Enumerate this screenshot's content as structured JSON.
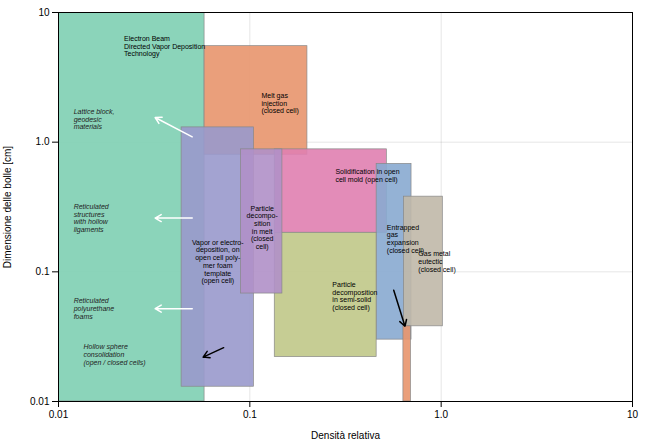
{
  "chart_data": {
    "type": "rect",
    "xlabel": "Densità relativa",
    "ylabel": "Dimensione delle bolle [cm]",
    "log": true,
    "xlim": [
      0.01,
      10
    ],
    "ylim": [
      0.01,
      10.0
    ],
    "xticks": [
      0.01,
      0.1,
      {
        "value": 1.0,
        "label": "1.0"
      },
      10
    ],
    "yticks": [
      0.01,
      0.1,
      {
        "value": 1.0,
        "label": "1.0"
      },
      10
    ],
    "grid": true,
    "rectangles": [
      {
        "label": "Electron Beam\nDirected Vapor Deposition\nTechnology",
        "x0": 0.01,
        "x1": 0.058,
        "y0": 0.01,
        "y1": 10.0,
        "color": "#7ecfb2",
        "edge_color": "#888888",
        "label_x": 0.022,
        "label_y": 5.5
      },
      {
        "label": "Melt gas\ninjection\n(closed cell)",
        "x0": 0.058,
        "x1": 0.2,
        "y0": 0.8,
        "y1": 5.5,
        "color": "#e8956d",
        "edge_color": "#888888",
        "label_x": 0.115,
        "label_y": 2.0
      },
      {
        "label": "Solidification in open\ncell mold (open cell)",
        "x0": 0.135,
        "x1": 0.52,
        "y0": 0.2,
        "y1": 0.88,
        "color": "#e080b0",
        "edge_color": "#888888",
        "label_x": 0.28,
        "label_y": 0.55
      },
      {
        "label": "Entrapped\ngas\nexpansion\n(closed cell)",
        "x0": 0.46,
        "x1": 0.7,
        "y0": 0.03,
        "y1": 0.68,
        "color": "#88aad0",
        "edge_color": "#888888",
        "label_x": 0.52,
        "label_y": 0.18
      },
      {
        "label": "Gas metal\neutectic\n(closed cell)",
        "x0": 0.64,
        "x1": 1.02,
        "y0": 0.038,
        "y1": 0.38,
        "color": "#c0b8a8",
        "edge_color": "#888888",
        "label_x": 0.76,
        "label_y": 0.12
      },
      {
        "label": "Vapor or electro-\ndeposition, on\nopen cell poly-\nmer foam\ntemplate\n(open cell)",
        "x0": 0.044,
        "x1": 0.105,
        "y0": 0.013,
        "y1": 1.3,
        "color": "#9999cc",
        "edge_color": "#888888",
        "label_x": 0.068,
        "label_y": 0.12
      },
      {
        "label": "Particle\ndecomposition\nin semi-solid\n(closed cell)",
        "x0": 0.135,
        "x1": 0.46,
        "y0": 0.022,
        "y1": 0.2,
        "color": "#c0c888",
        "edge_color": "#888888",
        "label_x": 0.27,
        "label_y": 0.065
      },
      {
        "x0": 0.635,
        "x1": 0.695,
        "y0": 0.01,
        "y1": 0.038,
        "color": "#e8956d",
        "edge_color": "#888888"
      },
      {
        "label": "Particle\ndecompo-\nsition\nin melt\n(closed\ncell)",
        "x0": 0.09,
        "x1": 0.148,
        "y0": 0.068,
        "y1": 0.88,
        "color": "#b090c8",
        "edge_color": "#888888",
        "label_x": 0.116,
        "label_y": 0.22
      }
    ],
    "annotations": [
      {
        "text": "Lattice block,\ngeodesic\nmaterials",
        "x": 0.012,
        "y": 1.5,
        "color": "#222222"
      },
      {
        "text": "Reticulated\nstructures\nwith hollow\nligaments",
        "x": 0.012,
        "y": 0.26,
        "color": "#222222"
      },
      {
        "text": "Reticulated\npolyurethane\nfoams",
        "x": 0.012,
        "y": 0.052,
        "color": "#222222"
      },
      {
        "text": "Hollow sphere\nconsolidation\n(open / closed cells)",
        "x": 0.0135,
        "y": 0.023,
        "color": "#222222"
      }
    ],
    "arrows": [
      {
        "x1": 0.05,
        "y1": 1.1,
        "x2": 0.032,
        "y2": 1.55,
        "color": "white"
      },
      {
        "x1": 0.05,
        "y1": 0.26,
        "x2": 0.032,
        "y2": 0.26,
        "color": "white"
      },
      {
        "x1": 0.05,
        "y1": 0.052,
        "x2": 0.032,
        "y2": 0.052,
        "color": "white"
      },
      {
        "x1": 0.073,
        "y1": 0.026,
        "x2": 0.057,
        "y2": 0.022,
        "color": "black"
      },
      {
        "x1": 0.565,
        "y1": 0.072,
        "x2": 0.647,
        "y2": 0.038,
        "color": "black"
      }
    ]
  }
}
